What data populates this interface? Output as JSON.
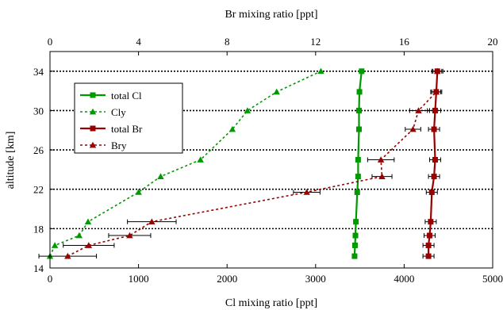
{
  "chart_data": {
    "type": "scatter",
    "title": "",
    "x_bottom": {
      "label": "Cl mixing ratio [ppt]",
      "range": [
        0,
        5000
      ],
      "ticks": [
        0,
        1000,
        2000,
        3000,
        4000,
        5000
      ]
    },
    "x_top": {
      "label": "Br mixing ratio [ppt]",
      "range": [
        0,
        20
      ],
      "ticks": [
        0,
        4,
        8,
        12,
        16,
        20
      ]
    },
    "y": {
      "label": "altitude [km]",
      "range": [
        14,
        36
      ],
      "ticks": [
        14,
        18,
        22,
        26,
        30,
        34
      ],
      "grid": "dotted horizontal lines at each tick"
    },
    "legend_position": "upper-left",
    "series": [
      {
        "name": "total Cl",
        "axis": "bottom",
        "color": "#009900",
        "line": "solid",
        "marker": "square",
        "points": [
          {
            "x": 3440,
            "y": 15.2
          },
          {
            "x": 3445,
            "y": 16.3
          },
          {
            "x": 3450,
            "y": 17.3
          },
          {
            "x": 3455,
            "y": 18.7
          },
          {
            "x": 3470,
            "y": 21.7
          },
          {
            "x": 3480,
            "y": 23.3
          },
          {
            "x": 3480,
            "y": 25.0
          },
          {
            "x": 3490,
            "y": 28.1
          },
          {
            "x": 3490,
            "y": 30.0
          },
          {
            "x": 3495,
            "y": 31.9
          },
          {
            "x": 3520,
            "y": 34.0
          }
        ]
      },
      {
        "name": "Cly",
        "axis": "bottom",
        "color": "#009900",
        "line": "dotted",
        "marker": "triangle",
        "points": [
          {
            "x": 0,
            "y": 15.2
          },
          {
            "x": 55,
            "y": 16.3
          },
          {
            "x": 330,
            "y": 17.3
          },
          {
            "x": 430,
            "y": 18.7
          },
          {
            "x": 1000,
            "y": 21.7
          },
          {
            "x": 1250,
            "y": 23.3
          },
          {
            "x": 1700,
            "y": 25.0
          },
          {
            "x": 2060,
            "y": 28.1
          },
          {
            "x": 2230,
            "y": 30.0
          },
          {
            "x": 2560,
            "y": 31.9
          },
          {
            "x": 3060,
            "y": 34.0
          }
        ]
      },
      {
        "name": "total Br",
        "axis": "top",
        "color": "#990000",
        "line": "solid",
        "marker": "square",
        "points": [
          {
            "x": 17.1,
            "y": 15.2,
            "err": 0.25
          },
          {
            "x": 17.1,
            "y": 16.3,
            "err": 0.25
          },
          {
            "x": 17.15,
            "y": 17.3,
            "err": 0.25
          },
          {
            "x": 17.2,
            "y": 18.7,
            "err": 0.25
          },
          {
            "x": 17.25,
            "y": 21.7,
            "err": 0.25
          },
          {
            "x": 17.35,
            "y": 23.3,
            "err": 0.25
          },
          {
            "x": 17.4,
            "y": 25.0,
            "err": 0.25
          },
          {
            "x": 17.35,
            "y": 28.1,
            "err": 0.25
          },
          {
            "x": 17.4,
            "y": 30.0,
            "err": 0.25
          },
          {
            "x": 17.45,
            "y": 31.9,
            "err": 0.25
          },
          {
            "x": 17.5,
            "y": 34.0,
            "err": 0.25
          }
        ]
      },
      {
        "name": "Bry",
        "axis": "top",
        "color": "#990000",
        "line": "dotted",
        "marker": "triangle",
        "points": [
          {
            "x": 0.8,
            "y": 15.2,
            "err": 1.3
          },
          {
            "x": 1.75,
            "y": 16.3,
            "err": 1.15
          },
          {
            "x": 3.6,
            "y": 17.3,
            "err": 0.95
          },
          {
            "x": 4.6,
            "y": 18.7,
            "err": 1.1
          },
          {
            "x": 11.6,
            "y": 21.7,
            "err": 0.6
          },
          {
            "x": 15.0,
            "y": 23.3,
            "err": 0.45
          },
          {
            "x": 14.95,
            "y": 25.0,
            "err": 0.6
          },
          {
            "x": 16.4,
            "y": 28.1,
            "err": 0.35
          },
          {
            "x": 16.65,
            "y": 30.0,
            "err": 0.4
          },
          {
            "x": 17.45,
            "y": 31.9,
            "err": 0.2
          },
          {
            "x": 17.5,
            "y": 34.0,
            "err": 0.2
          }
        ]
      }
    ]
  }
}
